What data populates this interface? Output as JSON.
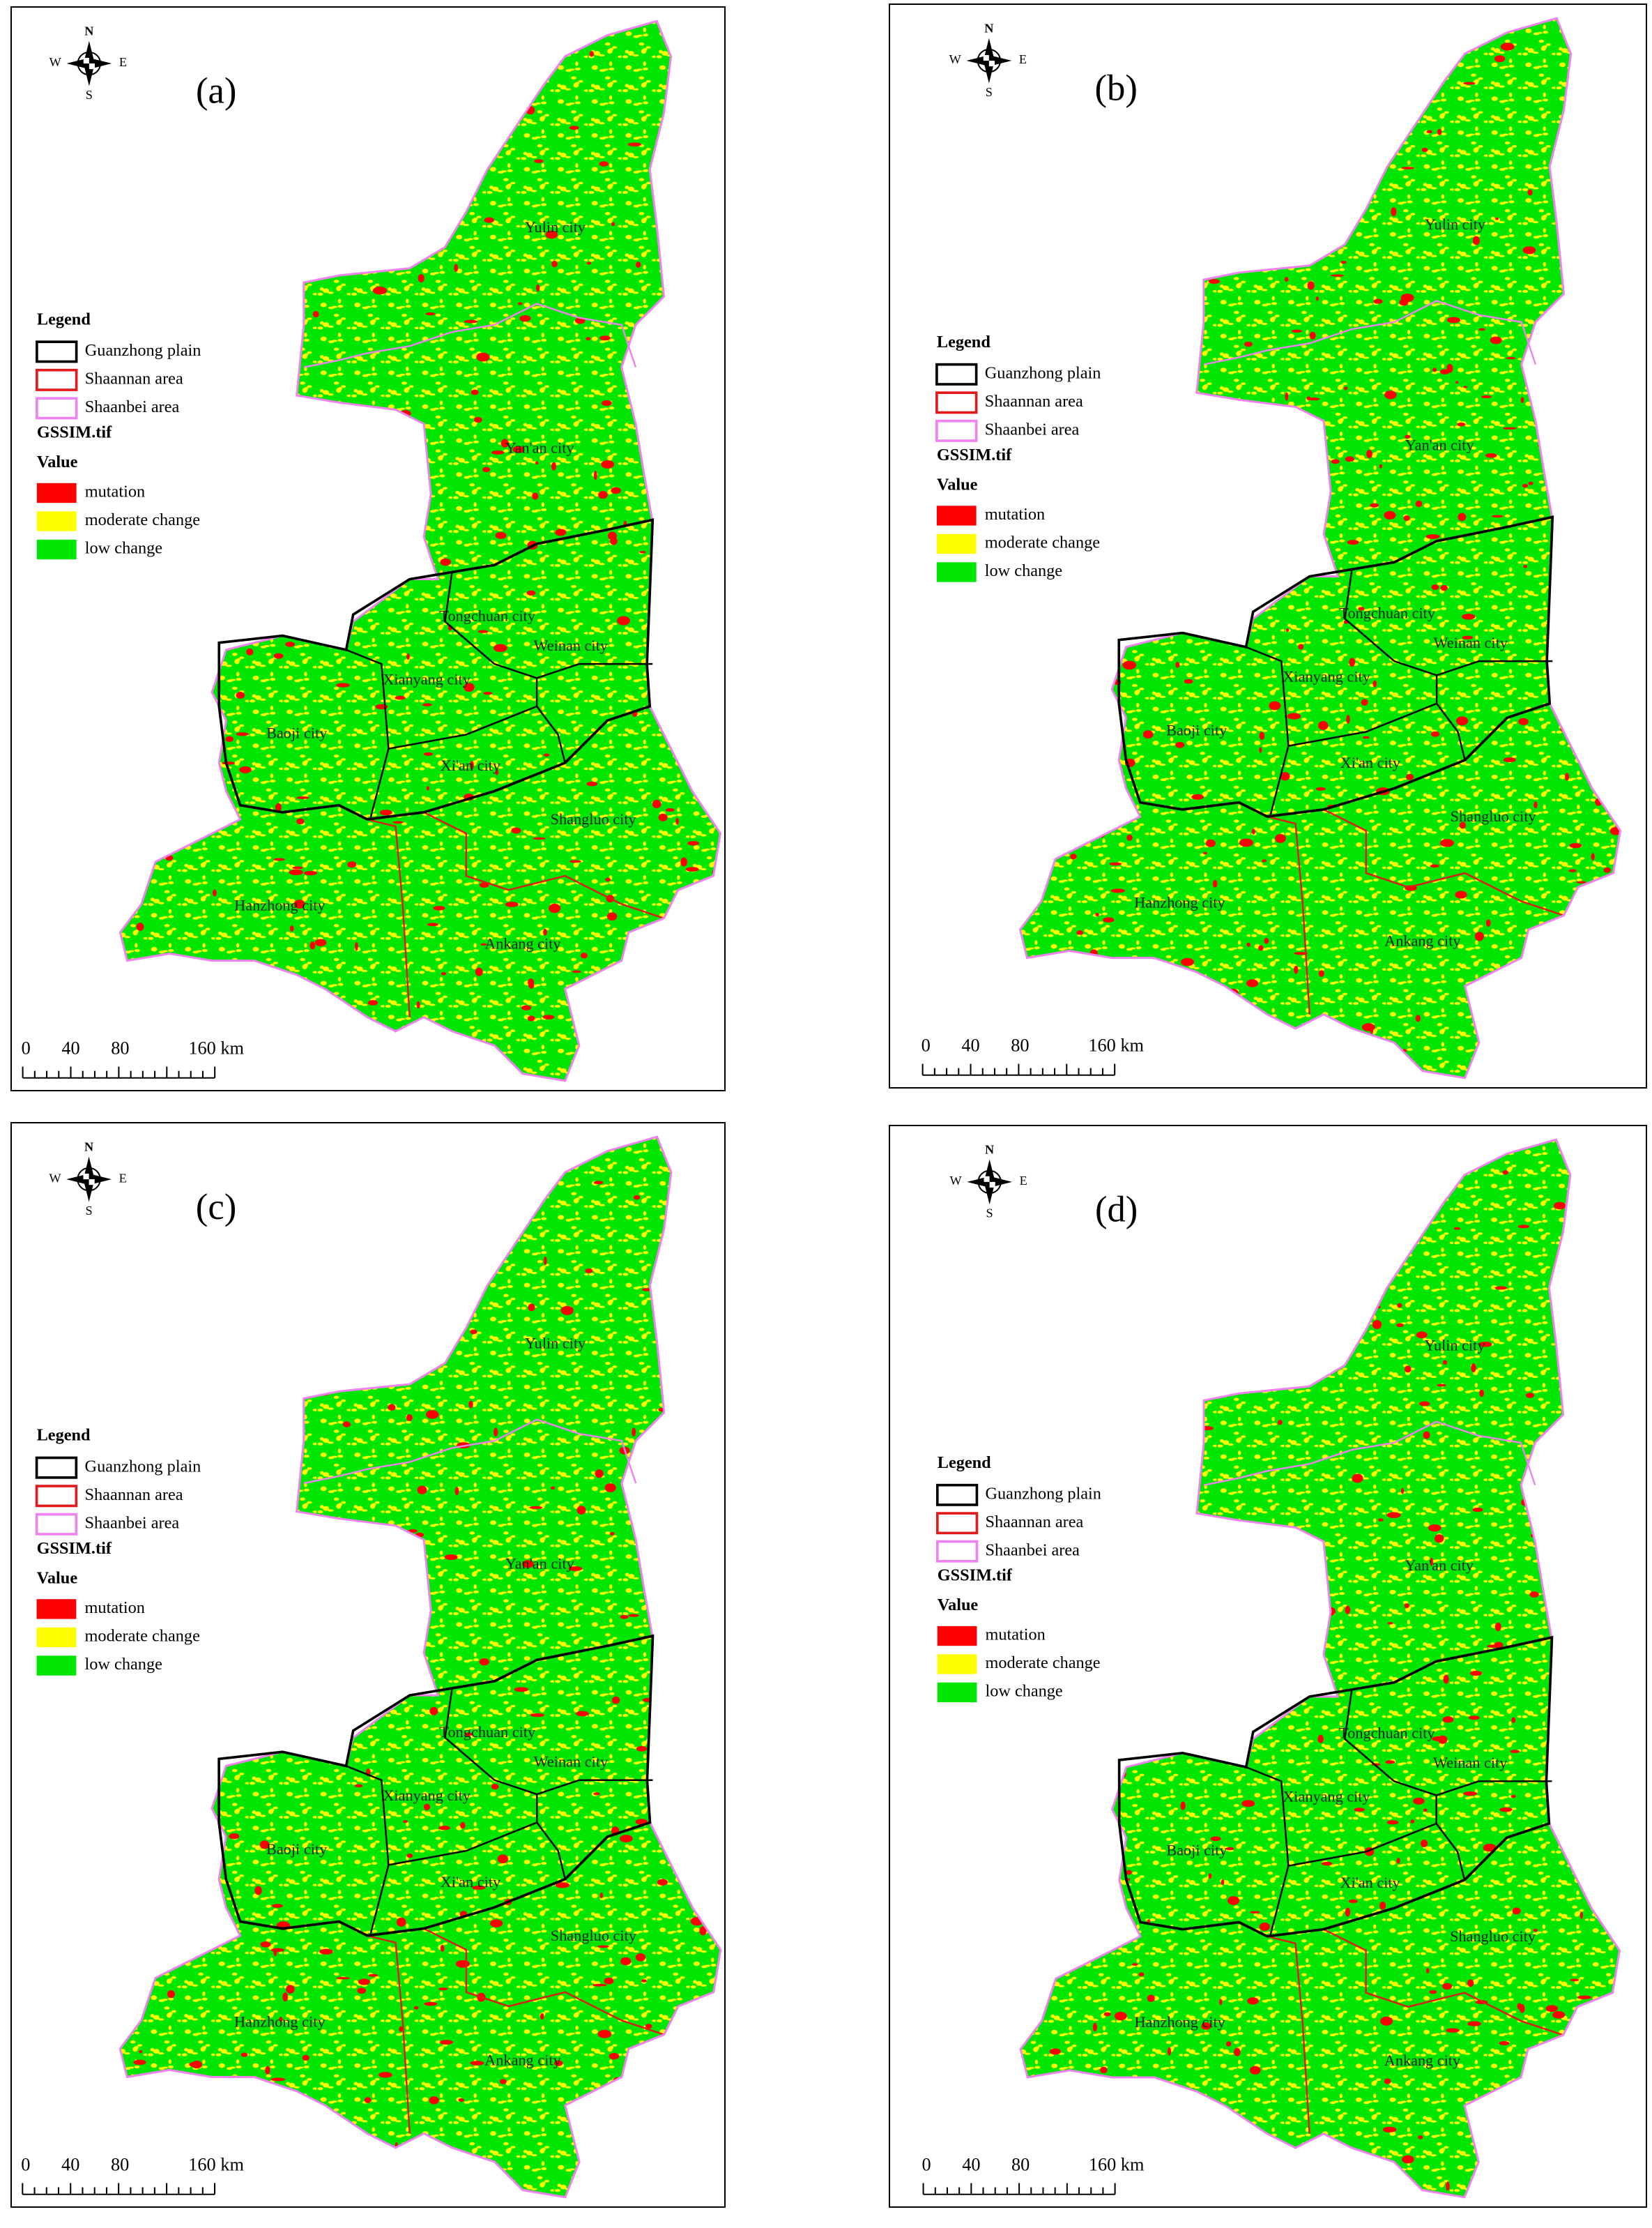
{
  "panels": [
    {
      "label": "(a)"
    },
    {
      "label": "(b)"
    },
    {
      "label": "(c)"
    },
    {
      "label": "(d)"
    }
  ],
  "compass": {
    "n": "N",
    "e": "E",
    "s": "S",
    "w": "W"
  },
  "legend": {
    "title": "Legend",
    "boundaries": [
      {
        "label": "Guanzhong plain",
        "color": "#000000"
      },
      {
        "label": "Shaannan area",
        "color": "#e31a1c"
      },
      {
        "label": "Shaanbei area",
        "color": "#ee82ee"
      }
    ],
    "layer": "GSSIM.tif",
    "field": "Value",
    "classes": [
      {
        "label": "mutation",
        "color": "#ff0000"
      },
      {
        "label": "moderate change",
        "color": "#ffff00"
      },
      {
        "label": "low change",
        "color": "#00e600"
      }
    ]
  },
  "cities": [
    "Yulin city",
    "Yan'an city",
    "Tongchuan city",
    "Weinan city",
    "Xianyang city",
    "Baoji city",
    "Xi'an city",
    "Shangluo city",
    "Hanzhong city",
    "Ankang city"
  ],
  "scale": {
    "labels": [
      "0",
      "40",
      "80",
      "160 km"
    ]
  }
}
